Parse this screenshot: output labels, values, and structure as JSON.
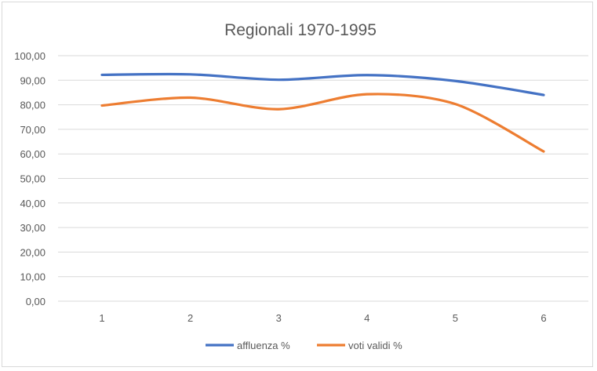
{
  "chart_data": {
    "type": "line",
    "title": "Regionali 1970-1995",
    "xlabel": "",
    "ylabel": "",
    "x": [
      1,
      2,
      3,
      4,
      5,
      6
    ],
    "x_tick_labels": [
      "1",
      "2",
      "3",
      "4",
      "5",
      "6"
    ],
    "ylim": [
      0,
      100
    ],
    "y_tick_labels": [
      "0,00",
      "10,00",
      "20,00",
      "30,00",
      "40,00",
      "50,00",
      "60,00",
      "70,00",
      "80,00",
      "90,00",
      "100,00"
    ],
    "grid": true,
    "legend_position": "bottom",
    "series": [
      {
        "name": "affluenza %",
        "color": "#4472c4",
        "values": [
          92.2,
          92.4,
          90.2,
          92.1,
          89.7,
          84.0
        ]
      },
      {
        "name": "voti validi %",
        "color": "#ed7d31",
        "values": [
          79.7,
          82.9,
          78.2,
          84.3,
          80.3,
          61.0
        ]
      }
    ]
  }
}
